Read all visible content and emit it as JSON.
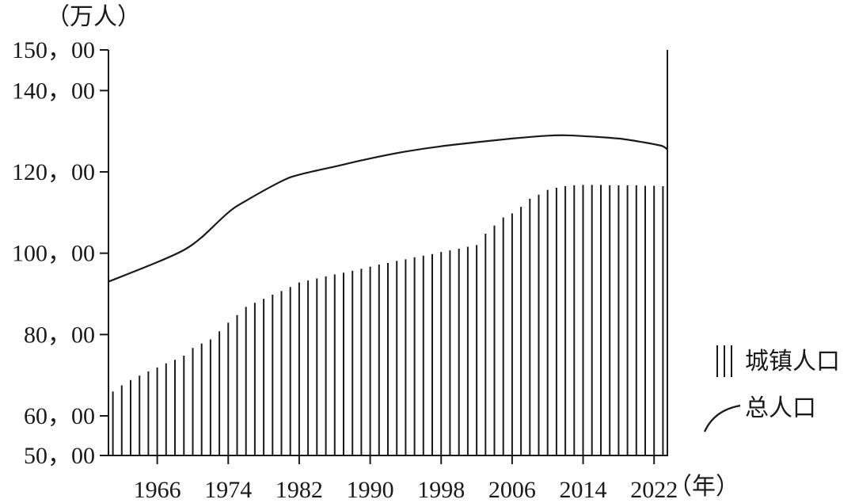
{
  "chart_data": {
    "type": "bar",
    "title": "",
    "ylabel": "（万人）",
    "xlabel": "（年）",
    "ylim": [
      50,
      150
    ],
    "y_scale": "piecewise",
    "y_ticks": [
      50,
      60,
      80,
      100,
      120,
      140,
      150
    ],
    "y_tick_labels": [
      "50，00",
      "60，00",
      "80，00",
      "100，00",
      "120，00",
      "140，00",
      "150，00"
    ],
    "x_ticks": [
      1966,
      1974,
      1982,
      1990,
      1998,
      2006,
      2014,
      2022
    ],
    "x_tick_labels": [
      "1966",
      "1974",
      "1982",
      "1990",
      "1998",
      "2006",
      "2014",
      "2022"
    ],
    "xlim": [
      1960.5,
      2023.5
    ],
    "legend_position": "right",
    "series": [
      {
        "name": "城镇人口",
        "type": "bar",
        "x": [
          1961,
          1962,
          1963,
          1964,
          1965,
          1966,
          1967,
          1968,
          1969,
          1970,
          1971,
          1972,
          1973,
          1974,
          1975,
          1976,
          1977,
          1978,
          1979,
          1980,
          1981,
          1982,
          1983,
          1984,
          1985,
          1986,
          1987,
          1988,
          1989,
          1990,
          1991,
          1992,
          1993,
          1994,
          1995,
          1996,
          1997,
          1998,
          1999,
          2000,
          2001,
          2002,
          2003,
          2004,
          2005,
          2006,
          2007,
          2008,
          2009,
          2010,
          2011,
          2012,
          2013,
          2014,
          2015,
          2016,
          2017,
          2018,
          2019,
          2020,
          2021,
          2022,
          2023
        ],
        "values": [
          66.0,
          67.5,
          68.8,
          69.9,
          70.9,
          71.9,
          72.9,
          73.8,
          74.8,
          76.7,
          77.8,
          78.8,
          80.8,
          82.9,
          84.8,
          86.8,
          87.8,
          88.8,
          89.8,
          90.7,
          91.7,
          92.8,
          93.3,
          93.8,
          94.3,
          94.8,
          95.2,
          95.7,
          96.2,
          96.7,
          97.2,
          97.6,
          98.1,
          98.5,
          99.0,
          99.4,
          99.8,
          100.3,
          100.7,
          101.1,
          101.6,
          102.0,
          104.8,
          106.8,
          108.8,
          109.8,
          111.4,
          113.4,
          114.4,
          115.6,
          116.1,
          116.5,
          116.7,
          116.8,
          116.8,
          116.8,
          116.7,
          116.7,
          116.7,
          116.7,
          116.6,
          116.6,
          116.5
        ]
      },
      {
        "name": "总人口",
        "type": "line",
        "x": [
          1960.5,
          1966,
          1969,
          1971,
          1974,
          1976,
          1980,
          1982,
          1986,
          1990,
          1994,
          1998,
          2002,
          2006,
          2010,
          2012,
          2014,
          2018,
          2021,
          2022,
          2023,
          2023.5
        ],
        "values": [
          93.0,
          97.8,
          100.8,
          103.9,
          110.0,
          112.9,
          117.7,
          119.3,
          121.3,
          123.3,
          125.0,
          126.3,
          127.3,
          128.2,
          128.9,
          129.0,
          128.8,
          128.2,
          127.2,
          126.8,
          126.3,
          125.5
        ]
      }
    ]
  }
}
